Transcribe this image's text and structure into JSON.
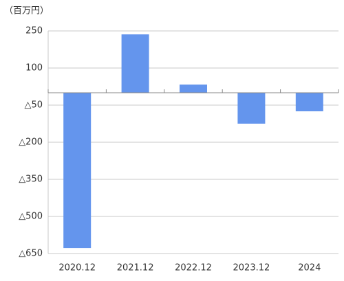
{
  "chart_data": {
    "type": "bar",
    "unit_label": "（百万円）",
    "categories": [
      "2020.12",
      "2021.12",
      "2022.12",
      "2023.12",
      "2024"
    ],
    "values": [
      -628,
      236,
      33,
      -125,
      -75
    ],
    "color": "#6495ed",
    "ylim": [
      -650,
      250
    ],
    "yticks": [
      250,
      100,
      {
        "value": -50,
        "label": "△50"
      },
      {
        "value": -200,
        "label": "△200"
      },
      {
        "value": -350,
        "label": "△350"
      },
      {
        "value": -500,
        "label": "△500"
      },
      {
        "value": -650,
        "label": "△650"
      }
    ],
    "grid": true
  }
}
